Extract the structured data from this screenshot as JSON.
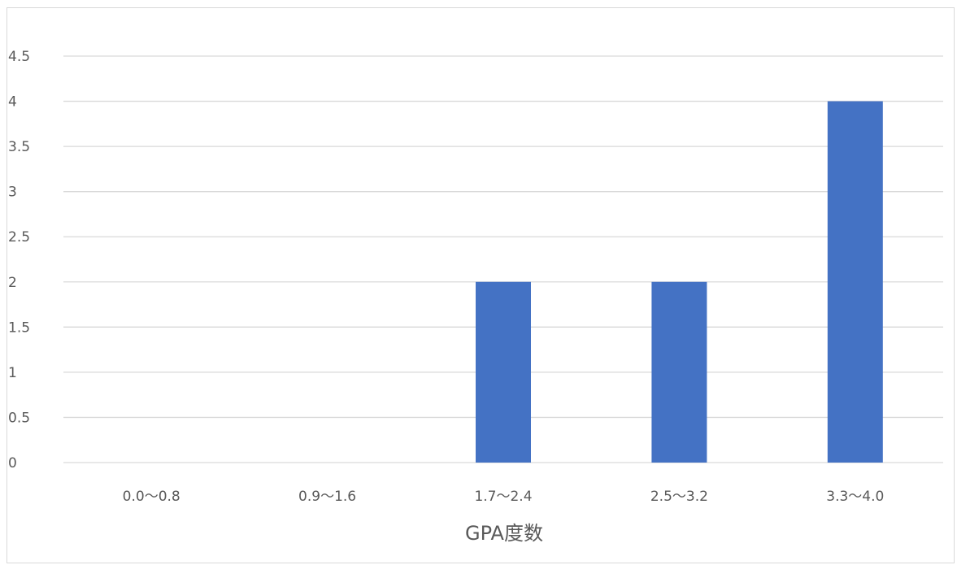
{
  "chart_data": {
    "type": "bar",
    "title": "",
    "xlabel": "GPA度数",
    "ylabel": "",
    "categories": [
      "0.0〜0.8",
      "0.9〜1.6",
      "1.7〜2.4",
      "2.5〜3.2",
      "3.3〜4.0"
    ],
    "values": [
      0,
      0,
      2,
      2,
      4
    ],
    "ylim": [
      0,
      4.5
    ],
    "yticks": [
      "0",
      "0.5",
      "1",
      "1.5",
      "2",
      "2.5",
      "3",
      "3.5",
      "4",
      "4.5"
    ],
    "grid": true,
    "legend": "none",
    "colors": {
      "bar": "#4472c4",
      "grid": "#d9d9d9",
      "text": "#595959",
      "frame": "#d9d9d9"
    }
  }
}
